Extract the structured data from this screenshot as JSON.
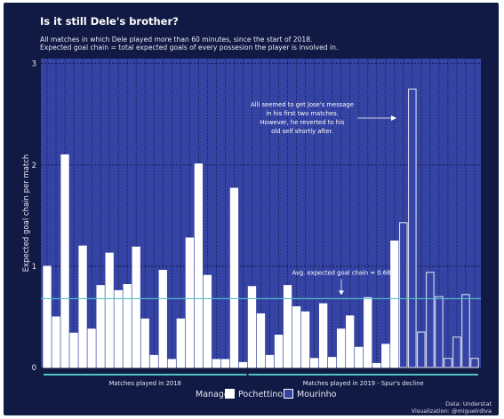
{
  "header": {
    "title": "Is it still Dele's brother?",
    "subtitle_line1": "All matches in which Dele played more than 60 minutes, since the start of 2018.",
    "subtitle_line2": "Expected goal chain = total expected goals of every possesion the player is involved in."
  },
  "source": {
    "line1": "Data: Understat",
    "line2": "Visualization: @miguelrdiva"
  },
  "legend": {
    "title": "Manager:",
    "items": [
      "Pochettino",
      "Mourinho"
    ]
  },
  "colors": {
    "background": "#111a44",
    "plot_bg": "#3443a4",
    "pochettino_fill": "#ffffff",
    "mourinho_fill": "#3443a4",
    "bar_edge": "#ffffff",
    "avg_line": "#4fc3c8",
    "bracket": "#4fc3c8"
  },
  "chart_data": {
    "type": "bar",
    "title": "Is it still Dele's brother?",
    "ylabel": "Expected goal chain per match",
    "xlabel": "",
    "ylim": [
      0,
      3.05
    ],
    "yticks": [
      0,
      1,
      2,
      3
    ],
    "grid": true,
    "legend_position": "bottom",
    "series": [
      {
        "name": "Pochettino",
        "values": [
          1.0,
          0.5,
          2.1,
          0.34,
          1.2,
          0.38,
          0.81,
          1.13,
          0.76,
          0.82,
          1.19,
          0.48,
          0.12,
          0.96,
          0.08,
          0.48,
          1.28,
          2.01,
          0.91,
          0.08,
          0.08,
          1.77,
          0.05,
          0.8,
          0.53,
          0.12,
          0.32,
          0.81,
          0.6,
          0.55,
          0.09,
          0.63,
          0.1,
          0.38,
          0.51,
          0.2,
          0.69,
          0.04,
          0.23,
          1.25
        ]
      },
      {
        "name": "Mourinho",
        "values": [
          1.43,
          2.75,
          0.35,
          0.94,
          0.7,
          0.09,
          0.3,
          0.72,
          0.09
        ]
      }
    ],
    "reference_line": {
      "label": "Avg. expected goal chain = 0.68",
      "value": 0.68
    },
    "groups": [
      {
        "label": "Matches played in 2018",
        "start_index": 0,
        "end_index": 22
      },
      {
        "label": "Matches played in 2019 - Spur's decline",
        "start_index": 23,
        "end_index": 48
      }
    ],
    "annotations": [
      {
        "lines": [
          "Alli seemed to get Jose's message",
          "in his first two matches.",
          "However, he reverted to his",
          "old self shortly after."
        ]
      }
    ]
  }
}
